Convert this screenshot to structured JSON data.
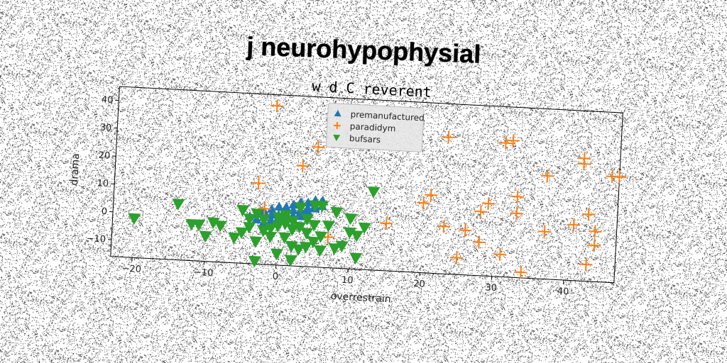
{
  "figure": {
    "suptitle": "j neurohypophysial"
  },
  "chart_data": {
    "type": "scatter",
    "title": "w d C reverent",
    "xlabel": "overrestrain",
    "ylabel": "drama",
    "xlim": [
      -23,
      47
    ],
    "ylim": [
      -16,
      45
    ],
    "xticks": [
      -20,
      -10,
      0,
      10,
      20,
      30,
      40
    ],
    "yticks": [
      -10,
      0,
      10,
      20,
      30,
      40
    ],
    "grid": false,
    "legend_position": "top-center",
    "rotation_deg": 3,
    "series": [
      {
        "name": "premanufactured",
        "marker": "triangle-up",
        "color": "#1f77b4",
        "points": [
          [
            -4,
            1
          ],
          [
            -3,
            2
          ],
          [
            -2,
            3
          ],
          [
            -1,
            4
          ],
          [
            0,
            5
          ],
          [
            1,
            5
          ],
          [
            2,
            6
          ],
          [
            3,
            7
          ],
          [
            4,
            7
          ],
          [
            5,
            8
          ],
          [
            6,
            8
          ],
          [
            -3,
            0
          ],
          [
            -2,
            1
          ],
          [
            -1,
            2
          ],
          [
            0,
            2
          ],
          [
            1,
            3
          ],
          [
            2,
            4
          ],
          [
            3,
            4
          ],
          [
            4,
            5
          ],
          [
            5,
            6
          ],
          [
            -1,
            0
          ],
          [
            0,
            1
          ],
          [
            1,
            1
          ],
          [
            2,
            2
          ],
          [
            3,
            3
          ],
          [
            4,
            4
          ],
          [
            5,
            5
          ],
          [
            -2,
            -1
          ],
          [
            -1,
            -1
          ],
          [
            0,
            0
          ],
          [
            1,
            0
          ],
          [
            2,
            1
          ],
          [
            3,
            2
          ],
          [
            4,
            3
          ],
          [
            6,
            6
          ]
        ]
      },
      {
        "name": "paradidym",
        "marker": "plus",
        "color": "#ff7f0e",
        "points": [
          [
            -1,
            41
          ],
          [
            -3,
            13
          ],
          [
            -2,
            4
          ],
          [
            3,
            20
          ],
          [
            5,
            27
          ],
          [
            7,
            -5
          ],
          [
            15,
            1
          ],
          [
            20,
            9
          ],
          [
            21,
            12
          ],
          [
            23,
            33
          ],
          [
            23,
            1
          ],
          [
            25,
            -10
          ],
          [
            26,
            0
          ],
          [
            28,
            -4
          ],
          [
            28,
            7
          ],
          [
            29,
            10
          ],
          [
            31,
            32
          ],
          [
            32,
            33
          ],
          [
            31,
            -8
          ],
          [
            33,
            13
          ],
          [
            33,
            7
          ],
          [
            34,
            -14
          ],
          [
            37,
            21
          ],
          [
            37,
            1
          ],
          [
            41,
            4
          ],
          [
            42,
            28
          ],
          [
            42,
            26
          ],
          [
            43,
            8
          ],
          [
            43,
            -10
          ],
          [
            44,
            2
          ],
          [
            44,
            -3
          ],
          [
            46,
            22
          ],
          [
            47,
            22
          ]
        ]
      },
      {
        "name": "bufsars",
        "marker": "triangle-down",
        "color": "#2ca02c",
        "points": [
          [
            -20,
            -2
          ],
          [
            -14,
            4
          ],
          [
            -12,
            -3
          ],
          [
            -11,
            -3
          ],
          [
            -10,
            -7
          ],
          [
            -9,
            -2
          ],
          [
            -8,
            -3
          ],
          [
            -6,
            -7
          ],
          [
            -5,
            -5
          ],
          [
            -5,
            3
          ],
          [
            -4,
            -3
          ],
          [
            -4,
            0
          ],
          [
            -3,
            -8
          ],
          [
            -3,
            -15
          ],
          [
            -3,
            2
          ],
          [
            -2,
            -4
          ],
          [
            -2,
            0
          ],
          [
            -1,
            -3
          ],
          [
            -1,
            -6
          ],
          [
            0,
            -2
          ],
          [
            0,
            1
          ],
          [
            0,
            -12
          ],
          [
            1,
            -6
          ],
          [
            1,
            -1
          ],
          [
            1,
            2
          ],
          [
            2,
            -3
          ],
          [
            2,
            -9
          ],
          [
            2,
            -14
          ],
          [
            2,
            0
          ],
          [
            3,
            -2
          ],
          [
            3,
            5
          ],
          [
            3,
            -10
          ],
          [
            4,
            -4
          ],
          [
            4,
            1
          ],
          [
            4,
            -9
          ],
          [
            5,
            -7
          ],
          [
            5,
            6
          ],
          [
            5,
            -1
          ],
          [
            6,
            -10
          ],
          [
            6,
            -5
          ],
          [
            6,
            6
          ],
          [
            7,
            -1
          ],
          [
            8,
            4
          ],
          [
            8,
            -9
          ],
          [
            9,
            -8
          ],
          [
            10,
            2
          ],
          [
            10,
            -3
          ],
          [
            11,
            -4
          ],
          [
            11,
            -12
          ],
          [
            12,
            -1
          ],
          [
            13,
            12
          ]
        ]
      }
    ]
  }
}
